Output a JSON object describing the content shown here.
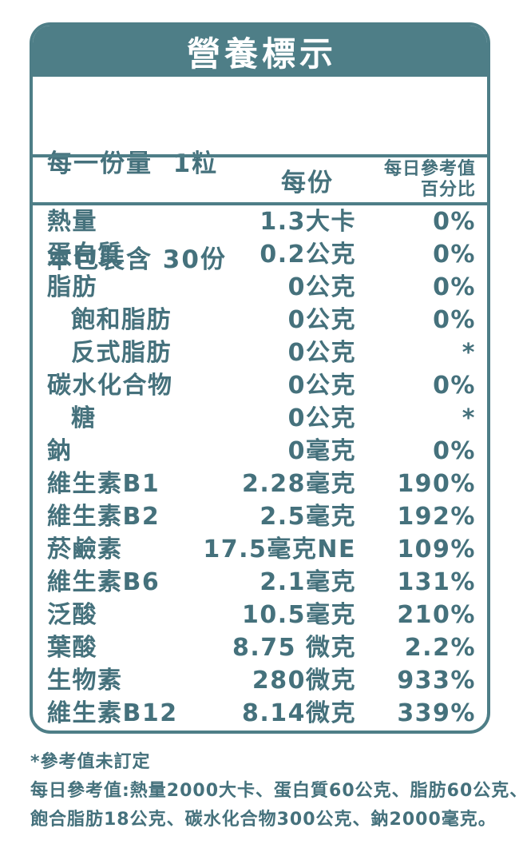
{
  "colors": {
    "teal": "#4E7E87",
    "text": "#45717C",
    "background": "#FFFFFF",
    "title_text": "#FFFFFF"
  },
  "title": "營養標示",
  "serving": {
    "line1": "每一份量  1粒",
    "line2": "本包裝含 30份"
  },
  "columns": {
    "per_serving": "每份",
    "daily_ref_line1": "每日參考值",
    "daily_ref_line2": "百分比"
  },
  "rows": [
    {
      "name": "熱量",
      "indent": false,
      "amount": "1.3大卡",
      "percent": "0%"
    },
    {
      "name": "蛋白質",
      "indent": false,
      "amount": "0.2公克",
      "percent": "0%"
    },
    {
      "name": "脂肪",
      "indent": false,
      "amount": "0公克",
      "percent": "0%"
    },
    {
      "name": "飽和脂肪",
      "indent": true,
      "amount": "0公克",
      "percent": "0%"
    },
    {
      "name": "反式脂肪",
      "indent": true,
      "amount": "0公克",
      "percent": "*"
    },
    {
      "name": "碳水化合物",
      "indent": false,
      "amount": "0公克",
      "percent": "0%"
    },
    {
      "name": "糖",
      "indent": true,
      "amount": "0公克",
      "percent": "*"
    },
    {
      "name": "鈉",
      "indent": false,
      "amount": "0毫克",
      "percent": "0%"
    },
    {
      "name": "維生素B1",
      "indent": false,
      "amount": "2.28毫克",
      "percent": "190%"
    },
    {
      "name": "維生素B2",
      "indent": false,
      "amount": "2.5毫克",
      "percent": "192%"
    },
    {
      "name": "菸鹼素",
      "indent": false,
      "amount": "17.5毫克NE",
      "percent": "109%"
    },
    {
      "name": "維生素B6",
      "indent": false,
      "amount": "2.1毫克",
      "percent": "131%"
    },
    {
      "name": "泛酸",
      "indent": false,
      "amount": "10.5毫克",
      "percent": "210%"
    },
    {
      "name": "葉酸",
      "indent": false,
      "amount": "8.75 微克",
      "percent": "2.2%"
    },
    {
      "name": "生物素",
      "indent": false,
      "amount": "280微克",
      "percent": "933%"
    },
    {
      "name": "維生素B12",
      "indent": false,
      "amount": "8.14微克",
      "percent": "339%"
    }
  ],
  "footnotes": {
    "line1": "*參考值未訂定",
    "line2": "每日參考值:熱量2000大卡、蛋白質60公克、脂肪60公克、",
    "line3": "飽合脂肪18公克、碳水化合物300公克、鈉2000毫克。"
  }
}
